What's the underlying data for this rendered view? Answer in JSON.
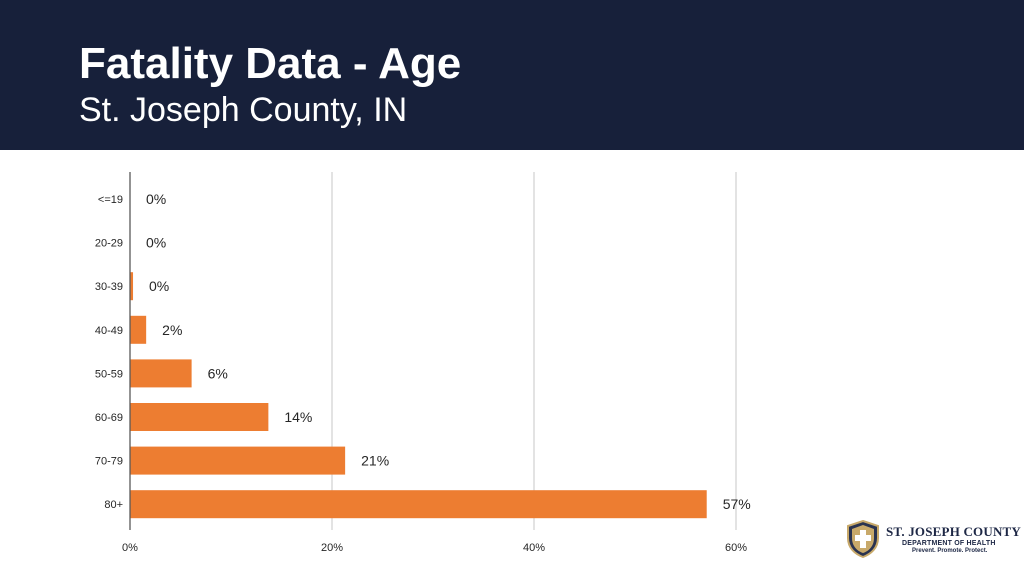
{
  "header": {
    "title": "Fatality Data - Age",
    "subtitle": "St. Joseph County, IN"
  },
  "colors": {
    "header_bg": "#17203a",
    "bar": "#ed7d31",
    "grid": "#d0d0d0",
    "axis": "#595959",
    "text": "#262626"
  },
  "chart_data": {
    "type": "bar",
    "orientation": "horizontal",
    "title": "Fatality Data - Age",
    "subtitle": "St. Joseph County, IN",
    "xlabel": "",
    "ylabel": "",
    "categories": [
      "<=19",
      "20-29",
      "30-39",
      "40-49",
      "50-59",
      "60-69",
      "70-79",
      "80+"
    ],
    "values": [
      0,
      0,
      0.3,
      1.6,
      6.1,
      13.7,
      21.3,
      57.1
    ],
    "data_labels": [
      "0%",
      "0%",
      "0%",
      "2%",
      "6%",
      "14%",
      "21%",
      "57%"
    ],
    "xlim": [
      0,
      60
    ],
    "xticks": [
      0,
      20,
      40,
      60
    ],
    "xtick_labels": [
      "0%",
      "20%",
      "40%",
      "60%"
    ],
    "grid": true,
    "legend": "none"
  },
  "logo": {
    "name": "ST. JOSEPH COUNTY",
    "dept": "DEPARTMENT OF HEALTH",
    "tagline": "Prevent. Promote. Protect."
  }
}
